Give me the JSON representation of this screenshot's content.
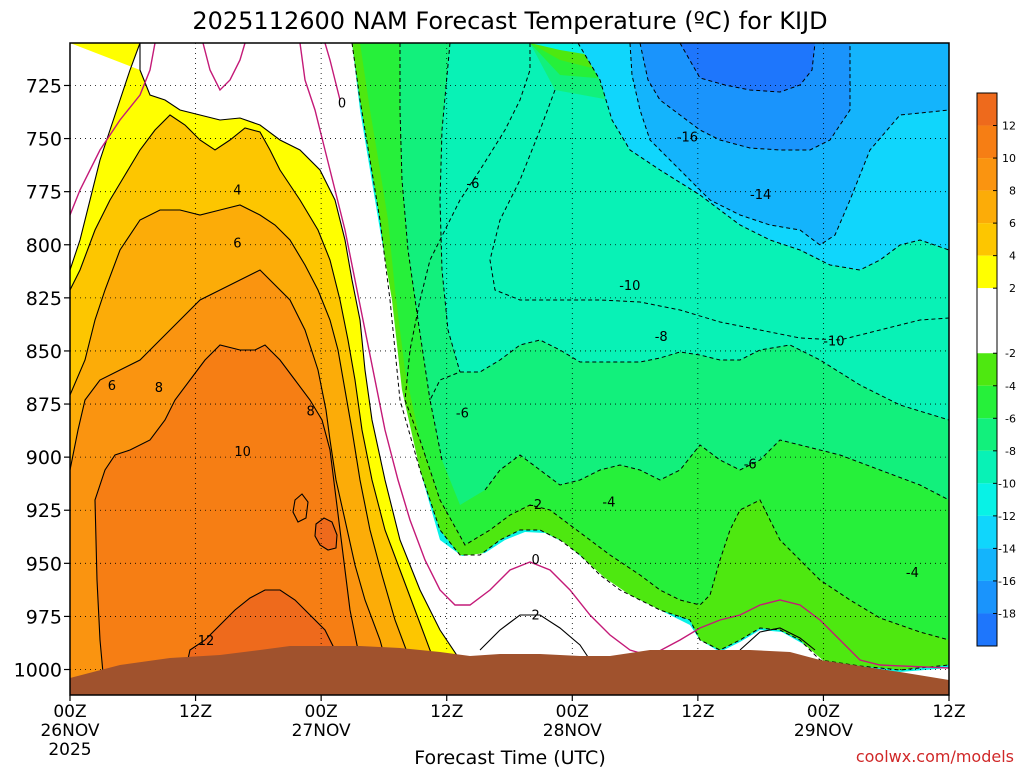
{
  "chart_data": {
    "type": "heatmap",
    "title": "2025112600 NAM Forecast Temperature (ºC) for KIJD",
    "xlabel": "Forecast Time (UTC)",
    "ylabel": "",
    "watermark": "coolwx.com/models",
    "x_ticks": [
      {
        "hour": 0,
        "label": "00Z",
        "sub": "26NOV",
        "year": "2025"
      },
      {
        "hour": 12,
        "label": "12Z",
        "sub": "",
        "year": ""
      },
      {
        "hour": 24,
        "label": "00Z",
        "sub": "27NOV",
        "year": ""
      },
      {
        "hour": 36,
        "label": "12Z",
        "sub": "",
        "year": ""
      },
      {
        "hour": 48,
        "label": "00Z",
        "sub": "28NOV",
        "year": ""
      },
      {
        "hour": 60,
        "label": "12Z",
        "sub": "",
        "year": ""
      },
      {
        "hour": 72,
        "label": "00Z",
        "sub": "29NOV",
        "year": ""
      },
      {
        "hour": 84,
        "label": "12Z",
        "sub": "",
        "year": ""
      }
    ],
    "xlim": [
      0,
      84
    ],
    "y_ticks": [
      "725",
      "750",
      "775",
      "800",
      "825",
      "850",
      "875",
      "900",
      "925",
      "950",
      "975",
      "1000"
    ],
    "y_values": [
      725,
      750,
      775,
      800,
      825,
      850,
      875,
      900,
      925,
      950,
      975,
      1000
    ],
    "ylim_hpa": [
      705,
      1012
    ],
    "colorbar": {
      "labels": [
        "12",
        "10",
        "8",
        "6",
        "4",
        "2",
        "-2",
        "-4",
        "-6",
        "-8",
        "-10",
        "-12",
        "-14",
        "-16",
        "-18"
      ],
      "bins": [
        {
          "from": 12,
          "to": 14,
          "color": "#ee6a1c"
        },
        {
          "from": 10,
          "to": 12,
          "color": "#f67e14"
        },
        {
          "from": 8,
          "to": 10,
          "color": "#fa9410"
        },
        {
          "from": 6,
          "to": 8,
          "color": "#fcac08"
        },
        {
          "from": 4,
          "to": 6,
          "color": "#fdc600"
        },
        {
          "from": 2,
          "to": 4,
          "color": "#ffff00"
        },
        {
          "from": -2,
          "to": 2,
          "color": "#ffffff"
        },
        {
          "from": -4,
          "to": -2,
          "color": "#4ee810"
        },
        {
          "from": -6,
          "to": -4,
          "color": "#26f03a"
        },
        {
          "from": -8,
          "to": -6,
          "color": "#12f07c"
        },
        {
          "from": -10,
          "to": -8,
          "color": "#08f2b6"
        },
        {
          "from": -12,
          "to": -10,
          "color": "#08f2e6"
        },
        {
          "from": -14,
          "to": -12,
          "color": "#10d6fc"
        },
        {
          "from": -16,
          "to": -14,
          "color": "#14b4fc"
        },
        {
          "from": -18,
          "to": -16,
          "color": "#1a94fc"
        },
        {
          "from": -20,
          "to": -18,
          "color": "#1e76fc"
        }
      ]
    },
    "contour_labels": [
      {
        "text": "0",
        "hour": 26,
        "hpa": 733
      },
      {
        "text": "-16",
        "hour": 59,
        "hpa": 749
      },
      {
        "text": "-14",
        "hour": 66,
        "hpa": 776
      },
      {
        "text": "-6",
        "hour": 38.5,
        "hpa": 771
      },
      {
        "text": "4",
        "hour": 16,
        "hpa": 774
      },
      {
        "text": "6",
        "hour": 16,
        "hpa": 799
      },
      {
        "text": "-10",
        "hour": 53.5,
        "hpa": 819
      },
      {
        "text": "-10",
        "hour": 73,
        "hpa": 845
      },
      {
        "text": "-8",
        "hour": 56.5,
        "hpa": 843
      },
      {
        "text": "6",
        "hour": 4,
        "hpa": 866
      },
      {
        "text": "8",
        "hour": 8.5,
        "hpa": 867
      },
      {
        "text": "8",
        "hour": 23,
        "hpa": 878
      },
      {
        "text": "-6",
        "hour": 37.5,
        "hpa": 879
      },
      {
        "text": "10",
        "hour": 16.5,
        "hpa": 897
      },
      {
        "text": "-6",
        "hour": 65,
        "hpa": 903
      },
      {
        "text": "-4",
        "hour": 51.5,
        "hpa": 921
      },
      {
        "text": "-2",
        "hour": 44.5,
        "hpa": 922
      },
      {
        "text": "0",
        "hour": 44.5,
        "hpa": 948
      },
      {
        "text": "-4",
        "hour": 80.5,
        "hpa": 954
      },
      {
        "text": "2",
        "hour": 44.5,
        "hpa": 974
      },
      {
        "text": "12",
        "hour": 13,
        "hpa": 986
      }
    ]
  }
}
